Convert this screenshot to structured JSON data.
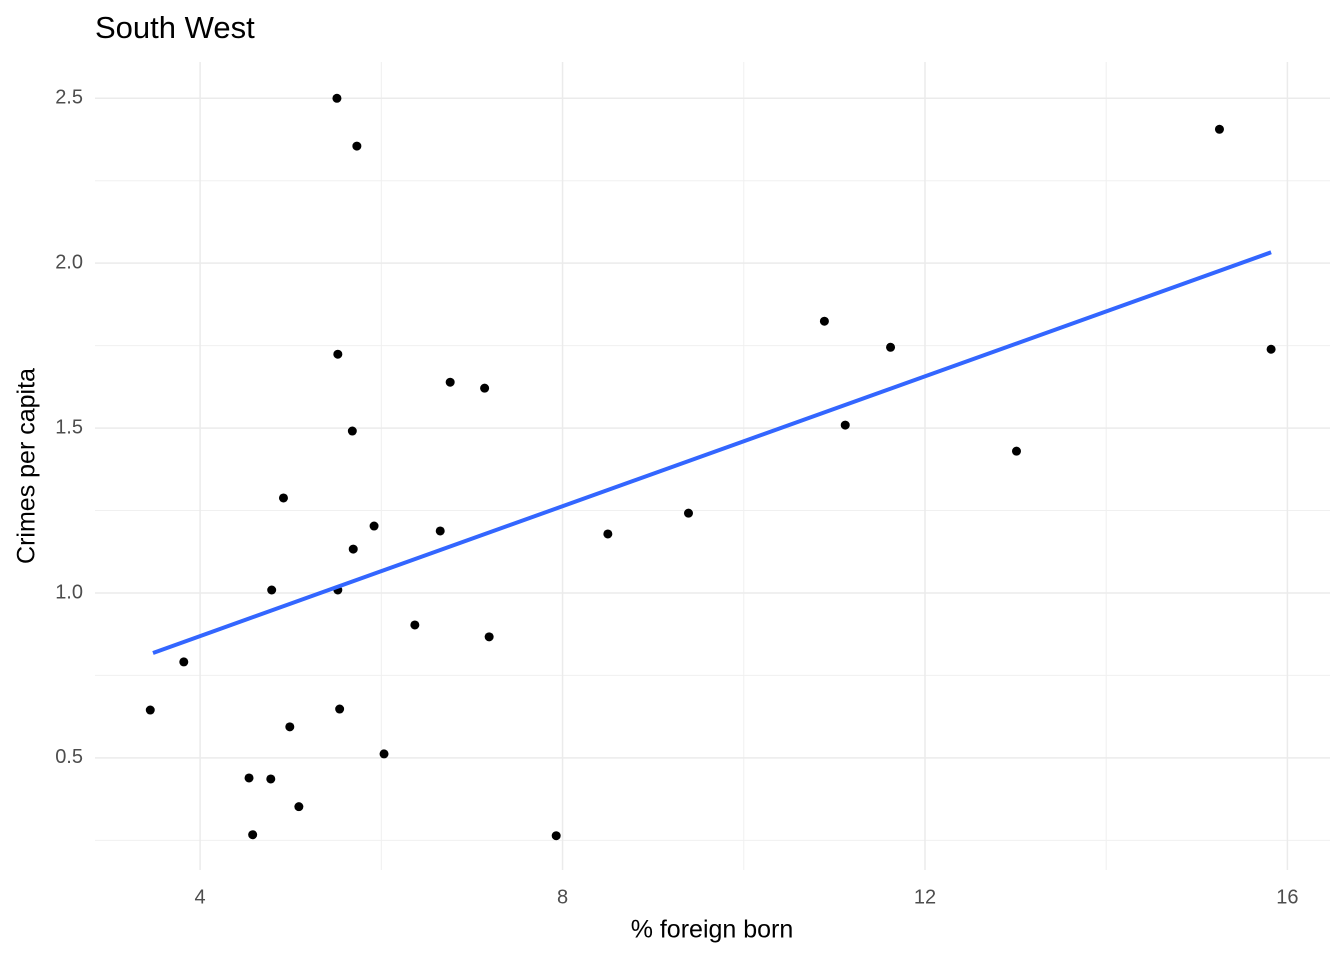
{
  "chart_data": {
    "type": "scatter",
    "title": "South West",
    "xlabel": "% foreign born",
    "ylabel": "Crimes per capita",
    "series": [
      {
        "color": "#000000",
        "x": [
          5.51,
          5.73,
          15.25,
          10.89,
          11.62,
          15.82,
          5.52,
          6.76,
          7.14,
          5.68,
          11.12,
          13.01,
          4.92,
          5.92,
          6.65,
          8.5,
          9.39,
          5.69,
          4.79,
          5.52,
          6.37,
          7.19,
          3.82,
          3.45,
          5.54,
          4.99,
          6.03,
          4.54,
          4.78,
          5.09,
          4.58,
          7.93
        ],
        "values": [
          2.5,
          2.355,
          2.406,
          1.824,
          1.745,
          1.739,
          1.724,
          1.639,
          1.621,
          1.491,
          1.509,
          1.43,
          1.288,
          1.203,
          1.188,
          1.179,
          1.242,
          1.133,
          1.009,
          1.009,
          0.903,
          0.867,
          0.791,
          0.645,
          0.648,
          0.594,
          0.512,
          0.439,
          0.436,
          0.352,
          0.267,
          0.264
        ]
      }
    ],
    "trend": {
      "color": "#3366ff",
      "x": [
        3.48,
        15.82
      ],
      "values": [
        0.818,
        2.033
      ]
    },
    "xlim": [
      2.84,
      16.47
    ],
    "ylim": [
      0.16,
      2.61
    ],
    "xticks": [
      4,
      8,
      12,
      16
    ],
    "yticks": [
      0.5,
      {
        "value": 1,
        "label": "1.0"
      },
      1.5,
      {
        "value": 2,
        "label": "2.0"
      },
      2.5
    ],
    "grid": true
  }
}
